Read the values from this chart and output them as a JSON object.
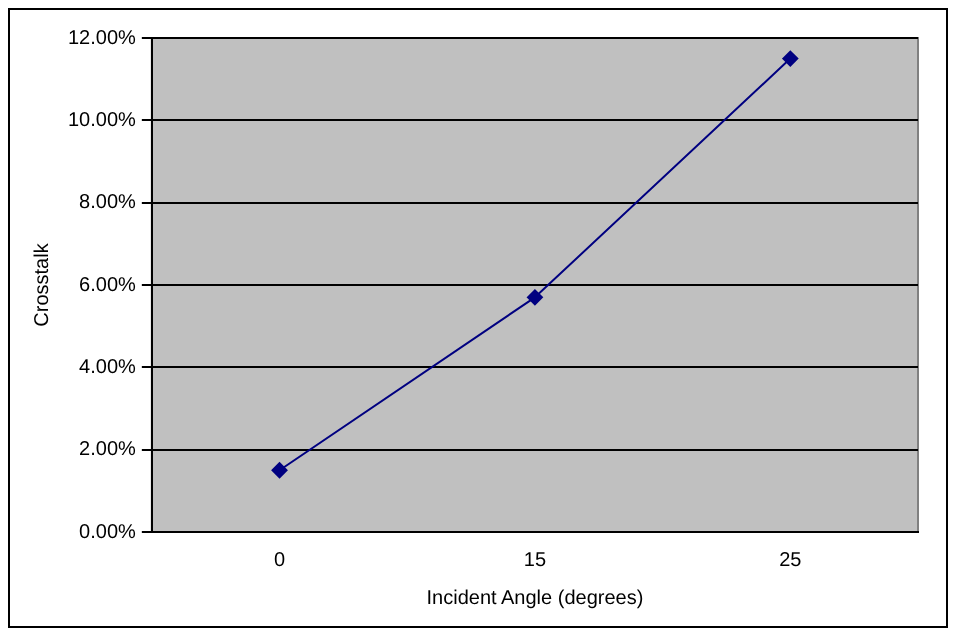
{
  "chart_data": {
    "type": "line",
    "xlabel": "Incident Angle (degrees)",
    "ylabel": "Crosstalk",
    "categories": [
      "0",
      "15",
      "25"
    ],
    "series": [
      {
        "color": "#000080",
        "values": [
          1.5,
          5.7,
          11.5
        ]
      }
    ],
    "ylim": [
      0,
      12
    ],
    "yticks": [
      {
        "value": 0,
        "label": "0.00%"
      },
      {
        "value": 2,
        "label": "2.00%"
      },
      {
        "value": 4,
        "label": "4.00%"
      },
      {
        "value": 6,
        "label": "6.00%"
      },
      {
        "value": 8,
        "label": "8.00%"
      },
      {
        "value": 10,
        "label": "10.00%"
      },
      {
        "value": 12,
        "label": "12.00%"
      }
    ],
    "grid": "y",
    "marker": "diamond",
    "line_style": "solid",
    "legend": false
  }
}
